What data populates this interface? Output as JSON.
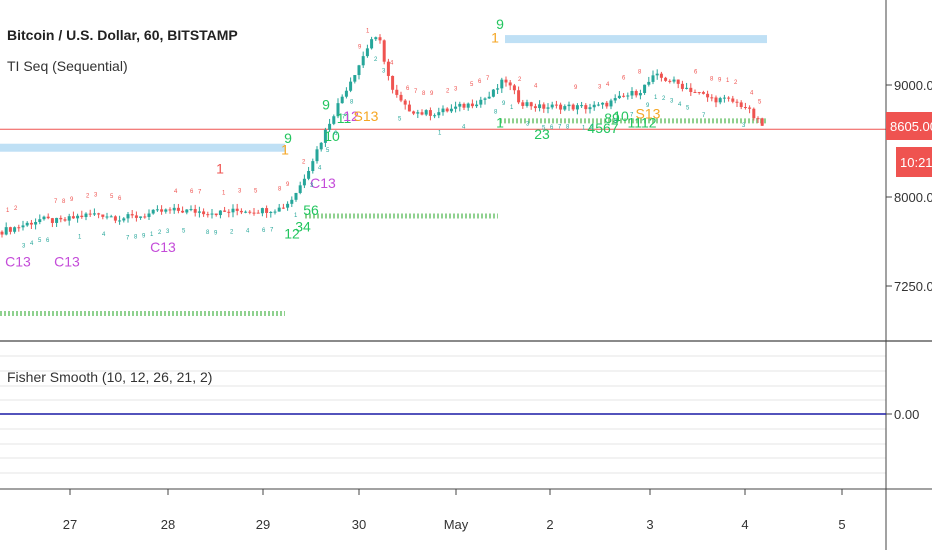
{
  "header": {
    "symbol_title": "Bitcoin / U.S. Dollar, 60, BITSTAMP",
    "indicator_label": "TI Seq (Sequential)"
  },
  "lower_pane": {
    "indicator_label": "Fisher Smooth (10, 12, 26, 21, 2)",
    "zero_label": "0.00",
    "line_color": "#1a1aa6"
  },
  "price_axis": {
    "ticks": [
      "9000.00",
      "8000.00",
      "7250.00"
    ],
    "current_price": "8605.00",
    "countdown": "10:21",
    "current_price_color": "#ef5350"
  },
  "time_axis": {
    "ticks": [
      "27",
      "28",
      "29",
      "30",
      "May",
      "2",
      "3",
      "4",
      "5"
    ]
  },
  "colors": {
    "up_candle": "#26a69a",
    "down_candle": "#ef5350",
    "setup_green": "#22c55e",
    "countdown_magenta": "#c44bd9",
    "perfection_orange": "#f5a623",
    "resistance_band": "#bfe0f5",
    "support_dots": "#8fd18f",
    "grid": "#e6e6e6",
    "separator": "#444444"
  },
  "chart_data": {
    "type": "candlestick",
    "symbol": "Bitcoin / U.S. Dollar",
    "interval": "60",
    "exchange": "BITSTAMP",
    "x_axis_labels": [
      "27",
      "28",
      "29",
      "30",
      "May",
      "2",
      "3",
      "4",
      "5"
    ],
    "y_axis_ticks": [
      9000,
      8000,
      7250
    ],
    "ylim": [
      6700,
      9800
    ],
    "price_path": [
      [
        0,
        7690
      ],
      [
        20,
        7740
      ],
      [
        40,
        7800
      ],
      [
        60,
        7780
      ],
      [
        80,
        7830
      ],
      [
        100,
        7850
      ],
      [
        120,
        7810
      ],
      [
        140,
        7830
      ],
      [
        160,
        7870
      ],
      [
        180,
        7880
      ],
      [
        200,
        7870
      ],
      [
        220,
        7860
      ],
      [
        240,
        7880
      ],
      [
        260,
        7880
      ],
      [
        280,
        7900
      ],
      [
        290,
        7960
      ],
      [
        300,
        8100
      ],
      [
        315,
        8380
      ],
      [
        330,
        8680
      ],
      [
        345,
        8950
      ],
      [
        360,
        9200
      ],
      [
        372,
        9420
      ],
      [
        380,
        9380
      ],
      [
        392,
        8950
      ],
      [
        405,
        8800
      ],
      [
        420,
        8750
      ],
      [
        435,
        8750
      ],
      [
        450,
        8780
      ],
      [
        470,
        8830
      ],
      [
        490,
        8900
      ],
      [
        505,
        9050
      ],
      [
        520,
        8850
      ],
      [
        540,
        8800
      ],
      [
        560,
        8810
      ],
      [
        580,
        8800
      ],
      [
        600,
        8810
      ],
      [
        620,
        8880
      ],
      [
        640,
        8950
      ],
      [
        655,
        9080
      ],
      [
        670,
        9040
      ],
      [
        690,
        8960
      ],
      [
        710,
        8880
      ],
      [
        730,
        8860
      ],
      [
        745,
        8810
      ],
      [
        755,
        8700
      ],
      [
        766,
        8605
      ]
    ],
    "current_price": 8605.0,
    "horizontal_line": 8605.0,
    "resistance_bands": [
      {
        "price": 8440,
        "x_from": 0,
        "x_to": 285
      },
      {
        "price": 9410,
        "x_from": 505,
        "x_to": 767
      }
    ],
    "support_dotted_lines": [
      {
        "price": 6960,
        "x_from": 0,
        "x_to": 285
      },
      {
        "price": 7830,
        "x_from": 305,
        "x_to": 498
      },
      {
        "price": 8680,
        "x_from": 500,
        "x_to": 767
      }
    ],
    "sequential_labels": [
      {
        "text": "C13",
        "x": 18,
        "price": 7380,
        "color": "magenta"
      },
      {
        "text": "C13",
        "x": 67,
        "price": 7380,
        "color": "magenta"
      },
      {
        "text": "C13",
        "x": 163,
        "price": 7510,
        "color": "magenta"
      },
      {
        "text": "1",
        "x": 220,
        "price": 8210,
        "color": "red"
      },
      {
        "text": "9",
        "x": 288,
        "price": 8480,
        "color": "green"
      },
      {
        "text": "1",
        "x": 285,
        "price": 8380,
        "color": "orange"
      },
      {
        "text": "12",
        "x": 292,
        "price": 7630,
        "color": "green"
      },
      {
        "text": "34",
        "x": 303,
        "price": 7690,
        "color": "green"
      },
      {
        "text": "56",
        "x": 311,
        "price": 7840,
        "color": "green"
      },
      {
        "text": "C13",
        "x": 323,
        "price": 8080,
        "color": "magenta"
      },
      {
        "text": "9",
        "x": 326,
        "price": 8780,
        "color": "green"
      },
      {
        "text": "10",
        "x": 332,
        "price": 8500,
        "color": "green"
      },
      {
        "text": "11",
        "x": 344,
        "price": 8660,
        "color": "green"
      },
      {
        "text": "12",
        "x": 351,
        "price": 8680,
        "color": "magenta"
      },
      {
        "text": "S13",
        "x": 366,
        "price": 8680,
        "color": "orange"
      },
      {
        "text": "9",
        "x": 500,
        "price": 9500,
        "color": "green"
      },
      {
        "text": "1",
        "x": 495,
        "price": 9380,
        "color": "orange"
      },
      {
        "text": "1",
        "x": 500,
        "price": 8620,
        "color": "green"
      },
      {
        "text": "23",
        "x": 542,
        "price": 8520,
        "color": "green"
      },
      {
        "text": "4567",
        "x": 603,
        "price": 8570,
        "color": "green"
      },
      {
        "text": "89",
        "x": 612,
        "price": 8660,
        "color": "green"
      },
      {
        "text": "10",
        "x": 621,
        "price": 8680,
        "color": "green"
      },
      {
        "text": "1112",
        "x": 642,
        "price": 8620,
        "color": "green"
      },
      {
        "text": "S13",
        "x": 648,
        "price": 8700,
        "color": "orange"
      }
    ],
    "lower_pane": {
      "indicator": "Fisher Smooth",
      "params": [
        10,
        12,
        26,
        21,
        2
      ],
      "value": 0.0
    }
  }
}
